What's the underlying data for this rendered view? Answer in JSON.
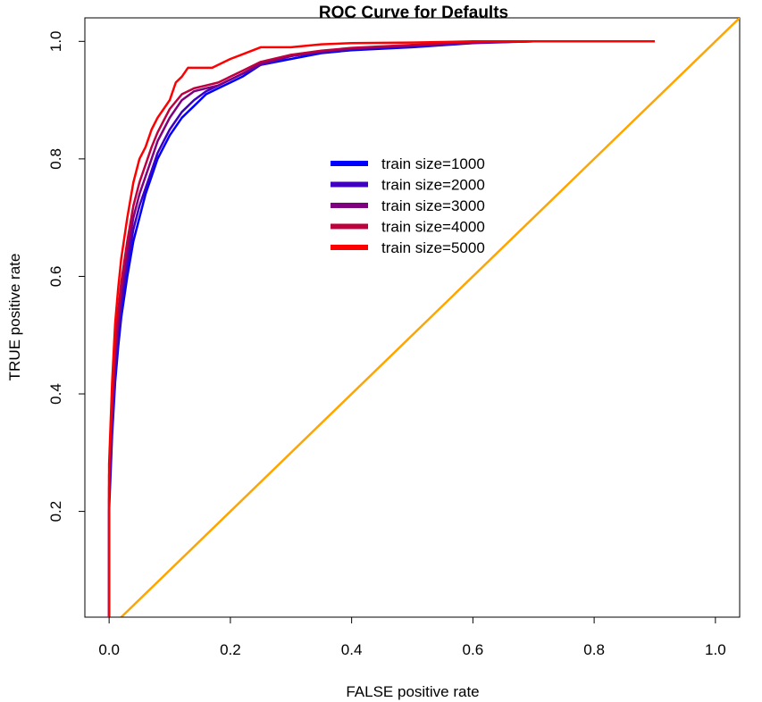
{
  "chart_data": {
    "type": "line",
    "title": "ROC Curve for Defaults",
    "xlabel": "FALSE positive rate",
    "ylabel": "TRUE positive rate",
    "xlim": [
      -0.04,
      1.04
    ],
    "ylim": [
      0.02,
      1.04
    ],
    "x_ticks": [
      "0.0",
      "0.2",
      "0.4",
      "0.6",
      "0.8",
      "1.0"
    ],
    "x_tick_values": [
      0.0,
      0.2,
      0.4,
      0.6,
      0.8,
      1.0
    ],
    "y_ticks": [
      "0.2",
      "0.4",
      "0.6",
      "0.8",
      "1.0"
    ],
    "y_tick_values": [
      0.2,
      0.4,
      0.6,
      0.8,
      1.0
    ],
    "grid": false,
    "legend_position": "center",
    "series": [
      {
        "name": "train size=1000",
        "color": "#0000FF",
        "x": [
          0.0,
          0.0,
          0.005,
          0.01,
          0.015,
          0.02,
          0.03,
          0.04,
          0.05,
          0.06,
          0.07,
          0.08,
          0.09,
          0.1,
          0.12,
          0.14,
          0.16,
          0.18,
          0.2,
          0.22,
          0.25,
          0.3,
          0.35,
          0.4,
          0.5,
          0.6,
          0.7,
          0.8,
          0.9
        ],
        "y": [
          0.02,
          0.2,
          0.33,
          0.42,
          0.48,
          0.53,
          0.6,
          0.66,
          0.7,
          0.74,
          0.77,
          0.8,
          0.82,
          0.84,
          0.87,
          0.89,
          0.91,
          0.92,
          0.93,
          0.94,
          0.96,
          0.97,
          0.98,
          0.985,
          0.99,
          0.997,
          1.0,
          1.0,
          1.0
        ]
      },
      {
        "name": "train size=2000",
        "color": "#3F00BF",
        "x": [
          0.0,
          0.0,
          0.005,
          0.01,
          0.015,
          0.02,
          0.03,
          0.04,
          0.05,
          0.06,
          0.07,
          0.08,
          0.09,
          0.1,
          0.12,
          0.14,
          0.16,
          0.18,
          0.2,
          0.22,
          0.25,
          0.3,
          0.35,
          0.4,
          0.5,
          0.6,
          0.7,
          0.8,
          0.9
        ],
        "y": [
          0.02,
          0.22,
          0.35,
          0.44,
          0.5,
          0.55,
          0.62,
          0.68,
          0.72,
          0.75,
          0.78,
          0.81,
          0.83,
          0.85,
          0.88,
          0.9,
          0.915,
          0.925,
          0.935,
          0.945,
          0.96,
          0.975,
          0.982,
          0.987,
          0.992,
          0.998,
          1.0,
          1.0,
          1.0
        ]
      },
      {
        "name": "train size=3000",
        "color": "#7F007F",
        "x": [
          0.0,
          0.0,
          0.005,
          0.01,
          0.015,
          0.02,
          0.03,
          0.04,
          0.05,
          0.06,
          0.07,
          0.08,
          0.09,
          0.1,
          0.12,
          0.14,
          0.16,
          0.18,
          0.2,
          0.22,
          0.25,
          0.3,
          0.35,
          0.4,
          0.5,
          0.6,
          0.7,
          0.8,
          0.9
        ],
        "y": [
          0.02,
          0.24,
          0.37,
          0.46,
          0.52,
          0.57,
          0.64,
          0.7,
          0.74,
          0.77,
          0.8,
          0.83,
          0.85,
          0.87,
          0.9,
          0.915,
          0.92,
          0.925,
          0.935,
          0.945,
          0.962,
          0.975,
          0.983,
          0.988,
          0.993,
          0.998,
          1.0,
          1.0,
          1.0
        ]
      },
      {
        "name": "train size=4000",
        "color": "#BF003F",
        "x": [
          0.0,
          0.0,
          0.005,
          0.01,
          0.015,
          0.02,
          0.03,
          0.04,
          0.05,
          0.06,
          0.07,
          0.08,
          0.09,
          0.1,
          0.12,
          0.14,
          0.16,
          0.18,
          0.2,
          0.22,
          0.25,
          0.3,
          0.35,
          0.4,
          0.5,
          0.6,
          0.7,
          0.8,
          0.9
        ],
        "y": [
          0.02,
          0.26,
          0.39,
          0.48,
          0.54,
          0.59,
          0.66,
          0.72,
          0.76,
          0.79,
          0.82,
          0.845,
          0.865,
          0.885,
          0.91,
          0.92,
          0.925,
          0.93,
          0.94,
          0.95,
          0.965,
          0.977,
          0.984,
          0.989,
          0.994,
          0.999,
          1.0,
          1.0,
          1.0
        ]
      },
      {
        "name": "train size=5000",
        "color": "#FF0000",
        "x": [
          0.0,
          0.0,
          0.005,
          0.01,
          0.015,
          0.02,
          0.03,
          0.04,
          0.05,
          0.06,
          0.07,
          0.08,
          0.09,
          0.1,
          0.11,
          0.12,
          0.13,
          0.14,
          0.17,
          0.2,
          0.22,
          0.25,
          0.3,
          0.35,
          0.4,
          0.5,
          0.6,
          0.7,
          0.8,
          0.9
        ],
        "y": [
          0.02,
          0.28,
          0.42,
          0.52,
          0.58,
          0.63,
          0.7,
          0.76,
          0.8,
          0.82,
          0.85,
          0.87,
          0.885,
          0.9,
          0.93,
          0.94,
          0.955,
          0.955,
          0.955,
          0.97,
          0.978,
          0.99,
          0.99,
          0.995,
          0.997,
          0.998,
          1.0,
          1.0,
          1.0,
          1.0
        ]
      }
    ],
    "reference_line": {
      "color": "#FFA500",
      "x": [
        0.0,
        1.04
      ],
      "y": [
        0.0,
        1.04
      ]
    }
  }
}
